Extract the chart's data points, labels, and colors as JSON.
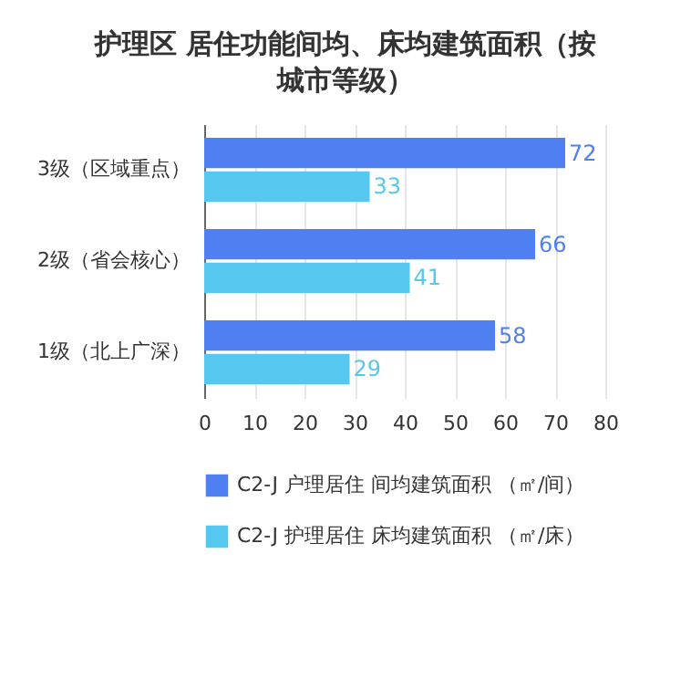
{
  "chart_data": {
    "type": "bar",
    "orientation": "horizontal",
    "title": "护理区 居住功能间均、床均建筑面积（按城市等级）",
    "categories": [
      "3级（区域重点）",
      "2级（省会核心）",
      "1级（北上广深）"
    ],
    "series": [
      {
        "name": "C2-J 户理居住 间均建筑面积 （㎡/间）",
        "color": "#4f7ff0",
        "values": [
          72,
          66,
          58
        ]
      },
      {
        "name": "C2-J 护理居住 床均建筑面积 （㎡/床）",
        "color": "#56c8ef",
        "values": [
          33,
          41,
          29
        ]
      }
    ],
    "xlim": [
      0,
      80
    ],
    "xticks": [
      0,
      10,
      20,
      30,
      40,
      50,
      60,
      70,
      80
    ],
    "grid": "x",
    "legend": "bottom",
    "data_labels": true
  }
}
